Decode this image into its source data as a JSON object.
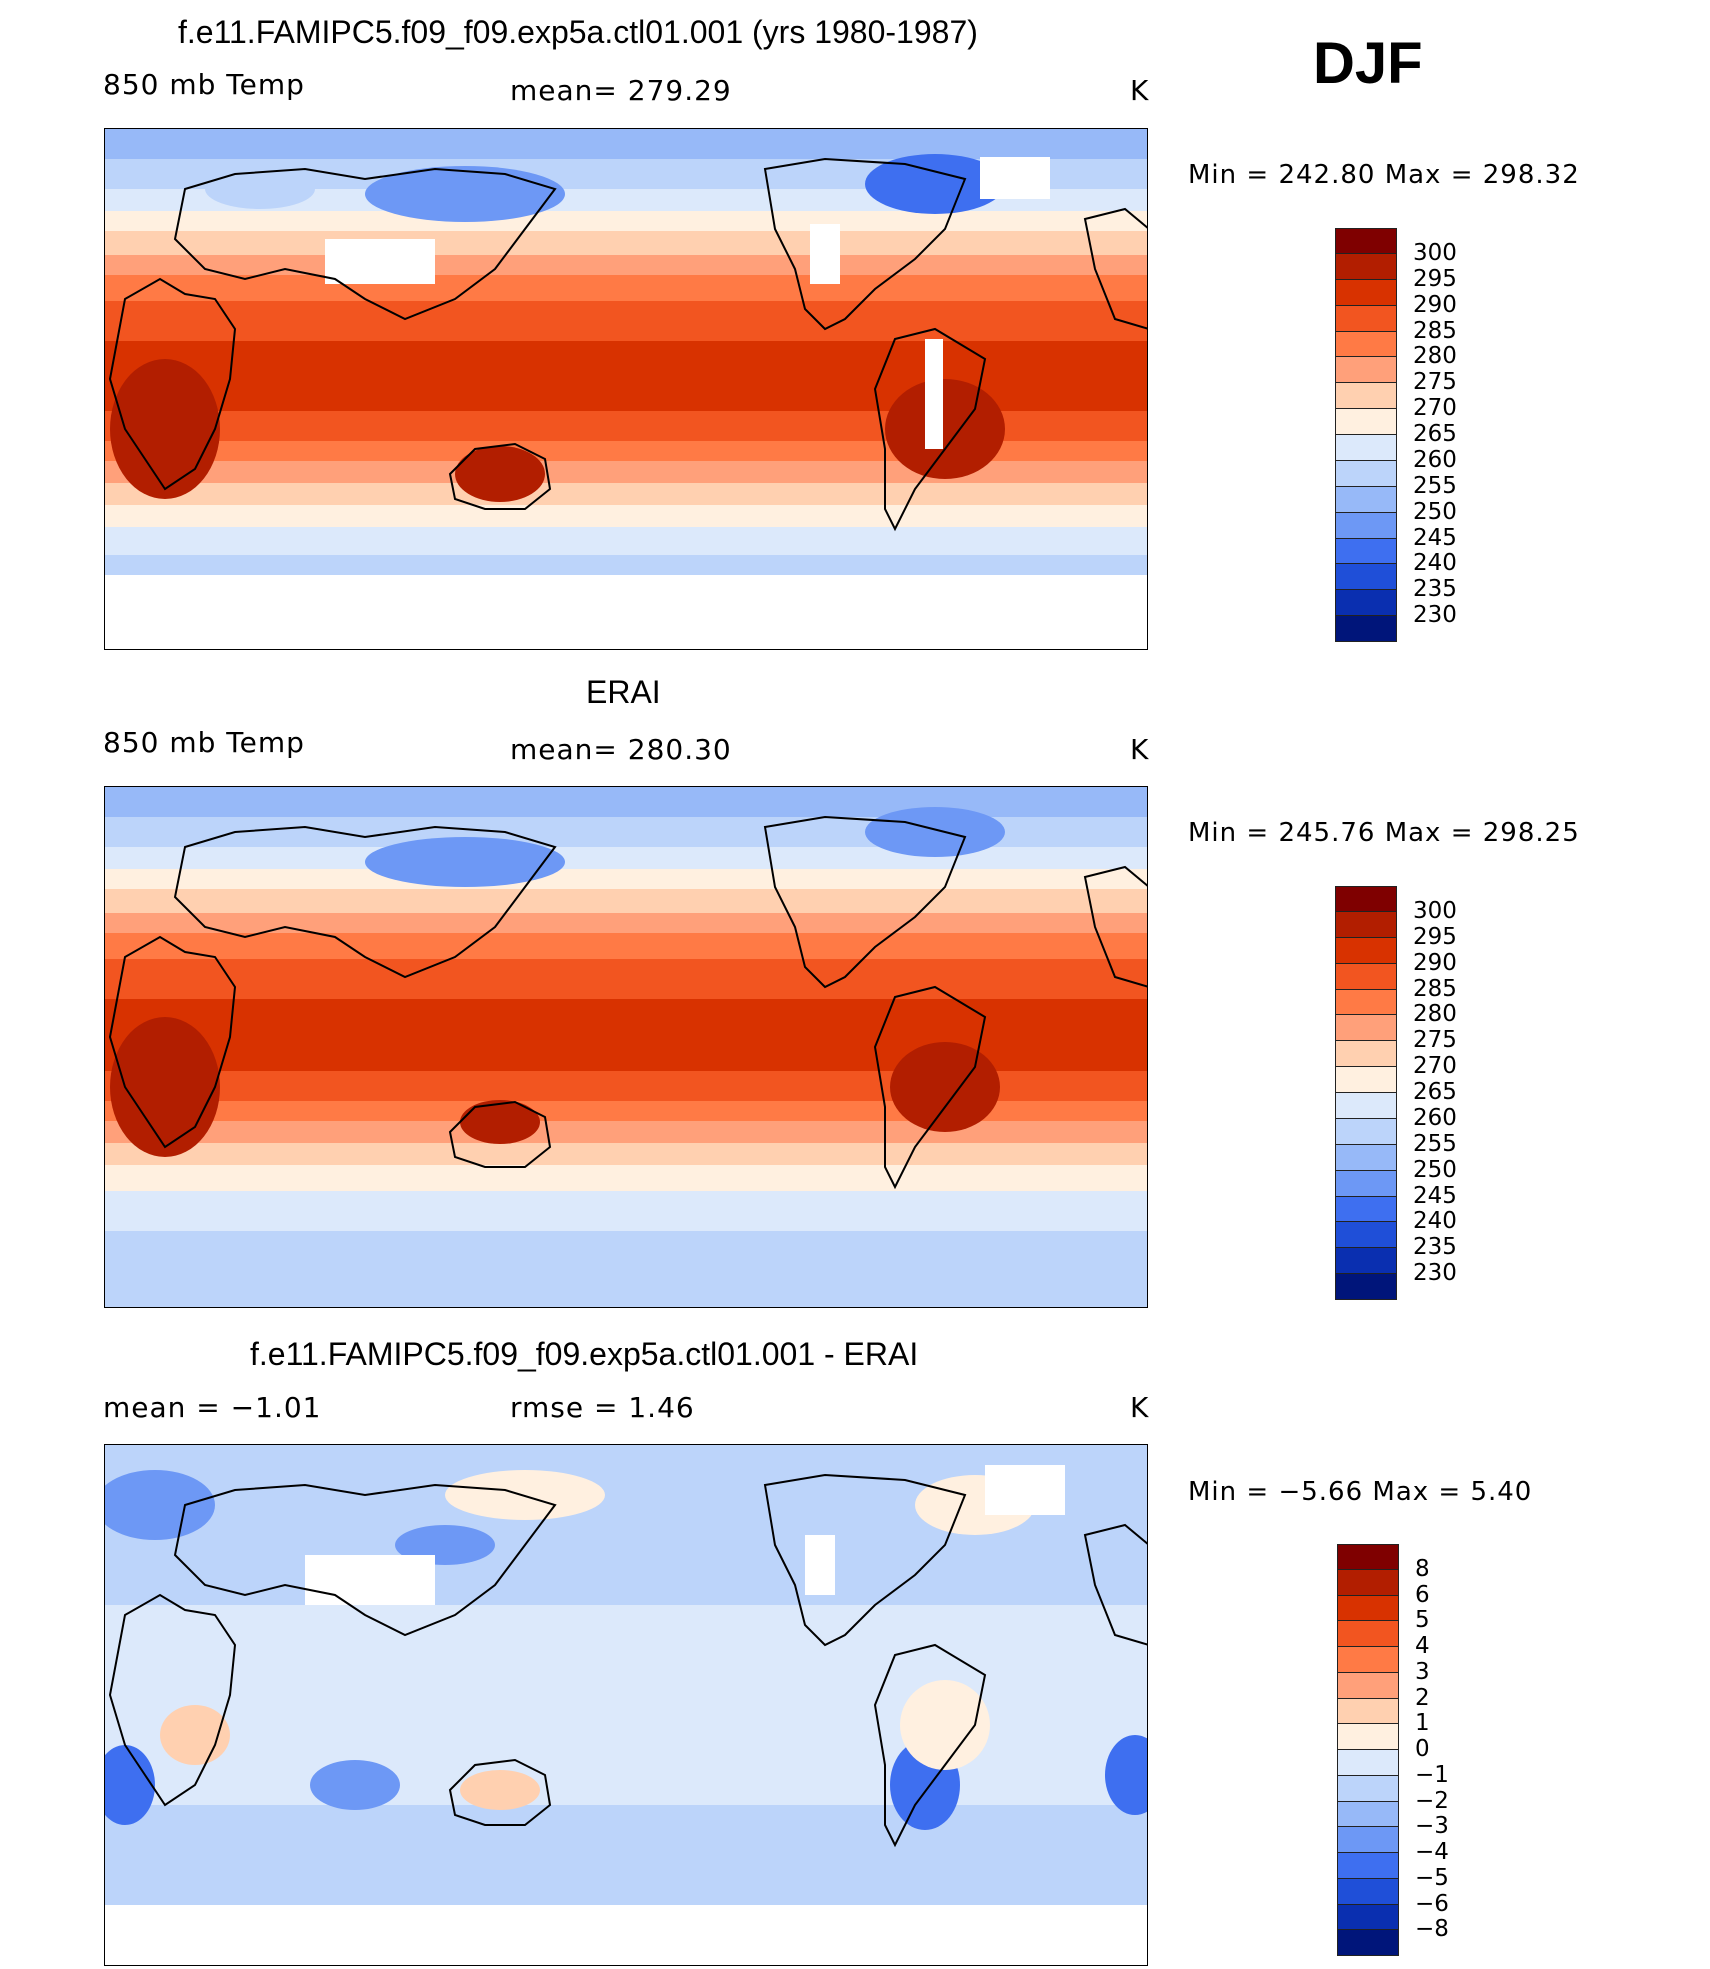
{
  "season": "DJF",
  "panels": [
    {
      "id": "model",
      "title": "f.e11.FAMIPC5.f09_f09.exp5a.ctl01.001 (yrs 1980-1987)",
      "left_label": "850 mb Temp",
      "center_label": "mean= 279.29",
      "units": "K",
      "minmax": "Min = 242.80 Max = 298.32",
      "colorbar": [
        "300",
        "295",
        "290",
        "285",
        "280",
        "275",
        "270",
        "265",
        "260",
        "255",
        "250",
        "245",
        "240",
        "235",
        "230"
      ]
    },
    {
      "id": "obs",
      "title": "ERAI",
      "left_label": "850 mb Temp",
      "center_label": "mean= 280.30",
      "units": "K",
      "minmax": "Min = 245.76 Max = 298.25",
      "colorbar": [
        "300",
        "295",
        "290",
        "285",
        "280",
        "275",
        "270",
        "265",
        "260",
        "255",
        "250",
        "245",
        "240",
        "235",
        "230"
      ]
    },
    {
      "id": "diff",
      "title": "f.e11.FAMIPC5.f09_f09.exp5a.ctl01.001 - ERAI",
      "left_label": "mean = −1.01",
      "center_label": "rmse = 1.46",
      "units": "K",
      "minmax": "Min = −5.66 Max = 5.40",
      "colorbar": [
        "8",
        "6",
        "5",
        "4",
        "3",
        "2",
        "1",
        "0",
        "−1",
        "−2",
        "−3",
        "−4",
        "−5",
        "−6",
        "−8"
      ]
    }
  ],
  "colors": {
    "temp_scale": [
      "#7f0000",
      "#b21e00",
      "#d83200",
      "#f25520",
      "#ff7a45",
      "#ffa07a",
      "#ffd0b0",
      "#fff0e0",
      "#dce9fb",
      "#bcd4fa",
      "#97b9f8",
      "#6d98f5",
      "#3e6ff0",
      "#1f4fd8",
      "#0a2fb0",
      "#00157a"
    ],
    "diff_scale": [
      "#7f0000",
      "#b21e00",
      "#d83200",
      "#f25520",
      "#ff7a45",
      "#ffa07a",
      "#ffd0b0",
      "#fff0e0",
      "#dce9fb",
      "#bcd4fa",
      "#97b9f8",
      "#6d98f5",
      "#3e6ff0",
      "#1f4fd8",
      "#0a2fb0",
      "#00157a"
    ]
  }
}
